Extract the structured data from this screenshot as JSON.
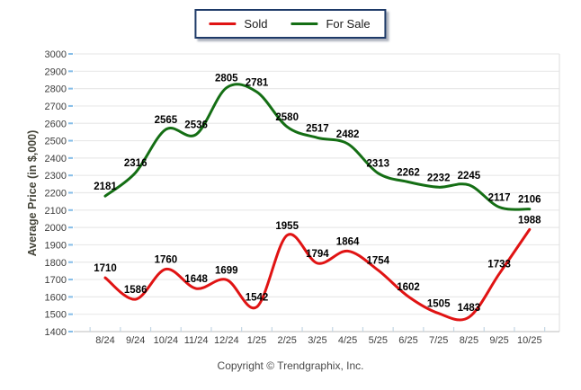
{
  "legend": {
    "items": [
      {
        "label": "Sold",
        "color": "#e01313"
      },
      {
        "label": "For Sale",
        "color": "#146e14"
      }
    ]
  },
  "footer": {
    "copyright": "Copyright © Trendgraphix, Inc."
  },
  "chart_data": {
    "type": "line",
    "smooth": true,
    "x": [
      "8/24",
      "9/24",
      "10/24",
      "11/24",
      "12/24",
      "1/25",
      "2/25",
      "3/25",
      "4/25",
      "5/25",
      "6/25",
      "7/25",
      "8/25",
      "9/25",
      "10/25"
    ],
    "series": [
      {
        "name": "Sold",
        "color": "#e01313",
        "values": [
          1710,
          1586,
          1760,
          1648,
          1699,
          1542,
          1955,
          1794,
          1864,
          1754,
          1602,
          1505,
          1483,
          1733,
          1988
        ]
      },
      {
        "name": "For Sale",
        "color": "#146e14",
        "values": [
          2181,
          2316,
          2565,
          2536,
          2805,
          2781,
          2580,
          2517,
          2482,
          2313,
          2262,
          2232,
          2245,
          2117,
          2106
        ]
      }
    ],
    "title": "",
    "xlabel": "",
    "ylabel": "Average Price (in $,000)",
    "ylim": [
      1400,
      3000
    ],
    "ytick_step": 100,
    "yticks": [
      1400,
      1500,
      1600,
      1700,
      1800,
      1900,
      2000,
      2100,
      2200,
      2300,
      2400,
      2500,
      2600,
      2700,
      2800,
      2900,
      3000
    ],
    "grid": true,
    "legend_position": "top-center",
    "data_labels": true
  },
  "colors": {
    "grid": "#e9e9e9",
    "axis_line": "#c9c9c9",
    "y_tick": "#85bde8",
    "x_tick": "#c3d6e4",
    "tick_label": "#3d3d3d",
    "data_label": "#000000",
    "axis_title": "#45453a"
  }
}
